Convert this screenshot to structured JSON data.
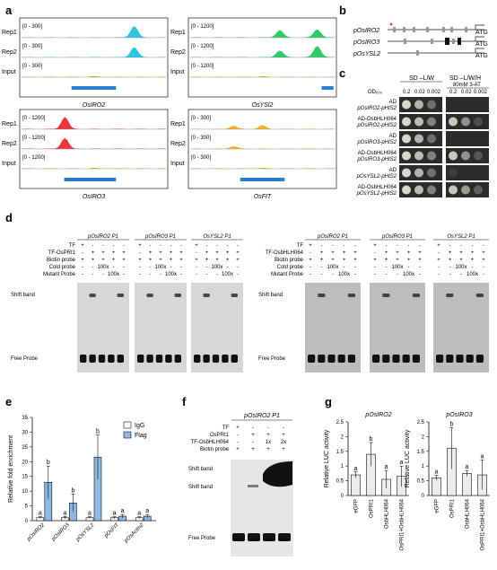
{
  "panels": {
    "a": {
      "letter": "a",
      "tracks": [
        {
          "gene": "OsIRO2",
          "rows": [
            {
              "label": "Rep1",
              "range": "[0 - 300]",
              "color": "#2fc4e0"
            },
            {
              "label": "Rep2",
              "range": "[0 - 300]",
              "color": "#2fc4e0"
            },
            {
              "label": "Input",
              "range": "[0 - 300]",
              "color": "#b9b700"
            }
          ]
        },
        {
          "gene": "OsYSl2",
          "rows": [
            {
              "label": "Rep1",
              "range": "[0 - 1200]",
              "color": "#31c96a"
            },
            {
              "label": "Rep2",
              "range": "[0 - 1200]",
              "color": "#31c96a"
            },
            {
              "label": "Input",
              "range": "[0 - 1200]",
              "color": "#b9b700"
            }
          ]
        },
        {
          "gene": "OsIRO3",
          "rows": [
            {
              "label": "Rep1",
              "range": "[0 - 1200]",
              "color": "#e5383d"
            },
            {
              "label": "Rep2",
              "range": "[0 - 1200]",
              "color": "#e5383d"
            },
            {
              "label": "Input",
              "range": "[0 - 1200]",
              "color": "#b9b700"
            }
          ]
        },
        {
          "gene": "OsFIT",
          "rows": [
            {
              "label": "Rep1",
              "range": "[0 - 300]",
              "color": "#f0b430"
            },
            {
              "label": "Rep2",
              "range": "[0 - 300]",
              "color": "#f0b430"
            },
            {
              "label": "Input",
              "range": "[0 - 300]",
              "color": "#b9b700"
            }
          ]
        }
      ]
    },
    "b": {
      "letter": "b",
      "promoters": [
        {
          "name": "pOsIRO2",
          "atg": "ATG"
        },
        {
          "name": "pOsIRO3",
          "atg": "ATG"
        },
        {
          "name": "pOsYSL2",
          "atg": "ATG"
        }
      ]
    },
    "c": {
      "letter": "c",
      "od_label": "OD₆₀₀",
      "col1_header": "SD –L/W",
      "col2_header": "SD –L/W/H",
      "col2_sub": "80mM 3-AT",
      "dilutions1": [
        "0.2",
        "0.02",
        "0.002"
      ],
      "dilutions2": [
        "0.2",
        "0.02",
        "0.002"
      ],
      "rows": [
        {
          "line1": "AD",
          "line2": "pOsIRO2-pHIS2"
        },
        {
          "line1": "AD-OsbHLH064",
          "line2": "pOsIRO2-pHIS2"
        },
        {
          "line1": "AD",
          "line2": "pOsIRO3-pHIS2"
        },
        {
          "line1": "AD-OsbHLH064",
          "line2": "pOsIRO3-pHIS2"
        },
        {
          "line1": "AD",
          "line2": "pOsYSL2-pHIS2"
        },
        {
          "line1": "AD-OsbHLH064",
          "line2": "pOsYSL2-pHIS2"
        }
      ]
    },
    "d": {
      "letter": "d",
      "left": {
        "row_labels": [
          "TF",
          "TF-OsPRI1",
          "Biotin probe",
          "Cold probe",
          "Mutant Probe"
        ],
        "gels": [
          "pOsIRO2 P1",
          "pOsIRO3 P1",
          "OsYSL2 P1"
        ],
        "shift_label": "Shift band",
        "free_label": "Free Probe",
        "row_values": [
          [
            "+",
            "-",
            "-",
            "-",
            "-"
          ],
          [
            "-",
            "+",
            "+",
            "+",
            "+"
          ],
          [
            "+",
            "+",
            "+",
            "+",
            "+"
          ],
          [
            "-",
            "-",
            "100x",
            "-",
            "-"
          ],
          [
            "-",
            "-",
            "-",
            "100x",
            "-"
          ]
        ]
      },
      "right": {
        "row_labels": [
          "TF",
          "TF-OsbHLH064",
          "Biotin probe",
          "Cold probe",
          "Mutant Probe"
        ],
        "gels": [
          "pOsIRO2 P1",
          "pOsIRO3 P1",
          "OsYSL2 P1"
        ],
        "shift_label": "Shift band",
        "free_label": "Free Probe"
      }
    },
    "e": {
      "letter": "e",
      "legend": [
        {
          "name": "IgG",
          "color": "#ffffff"
        },
        {
          "name": "Flag",
          "color": "#8db9e2"
        }
      ],
      "ylabel": "Relative fold enrichment"
    },
    "f": {
      "letter": "f",
      "title": "pOsIRO2 P1",
      "row_labels": [
        "TF",
        "OsPRI1",
        "TF-OsbHLH064",
        "Biotin probe"
      ],
      "row_values": [
        [
          "+",
          "-",
          "-",
          "-"
        ],
        [
          "-",
          "+",
          "+",
          "+"
        ],
        [
          "-",
          "-",
          "1x",
          "2x"
        ],
        [
          "+",
          "+",
          "+",
          "+"
        ]
      ],
      "shift1": "Shift band",
      "shift2": "Shift band",
      "free": "Free Probe"
    },
    "g": {
      "letter": "g",
      "ylabel": "Relative LUC activity"
    }
  },
  "chart_data": [
    {
      "type": "bar",
      "panel": "e",
      "categories": [
        "pOsIRO2",
        "pOsIRO3",
        "pOsYSL2",
        "pOsFIT",
        "pOsActin2"
      ],
      "series": [
        {
          "name": "IgG",
          "values": [
            1,
            1,
            1,
            1,
            1
          ],
          "err": [
            0.3,
            0.4,
            0.3,
            0.3,
            0.3
          ],
          "letters": [
            "a",
            "a",
            "a",
            "a",
            "a"
          ]
        },
        {
          "name": "Flag",
          "values": [
            13,
            6,
            21.5,
            1.5,
            1.5
          ],
          "err": [
            5.5,
            3,
            7.5,
            0.6,
            0.6
          ],
          "letters": [
            "b",
            "b",
            "b",
            "a",
            "a"
          ]
        }
      ],
      "ylabel": "Relative fold enrichment",
      "ylim": [
        0,
        35
      ],
      "yticks": [
        0,
        5,
        10,
        15,
        20,
        25,
        30,
        35
      ]
    },
    {
      "type": "bar",
      "panel": "g-left",
      "title": "pOsIRO2",
      "categories": [
        "eGFP",
        "OsPRI1",
        "OsbHLH064",
        "OsPRI1+OsbHLH064"
      ],
      "values": [
        0.7,
        1.4,
        0.55,
        0.65
      ],
      "err": [
        0.1,
        0.4,
        0.3,
        0.35
      ],
      "letters": [
        "a",
        "b",
        "a",
        "a"
      ],
      "ylabel": "Relative LUC activity",
      "ylim": [
        0,
        2.5
      ],
      "yticks": [
        0,
        0.5,
        1,
        1.5,
        2,
        2.5
      ]
    },
    {
      "type": "bar",
      "panel": "g-right",
      "title": "pOsIRO3",
      "categories": [
        "eGFP",
        "OsPRI1",
        "OsbHLH064",
        "OsPRI1+OsbHLH064"
      ],
      "values": [
        0.6,
        1.6,
        0.75,
        0.7
      ],
      "err": [
        0.08,
        0.7,
        0.1,
        0.5
      ],
      "letters": [
        "a",
        "b",
        "a",
        "a"
      ],
      "ylabel": "Relative LUC activity",
      "ylim": [
        0,
        2.5
      ],
      "yticks": [
        0,
        0.5,
        1,
        1.5,
        2,
        2.5
      ]
    }
  ]
}
